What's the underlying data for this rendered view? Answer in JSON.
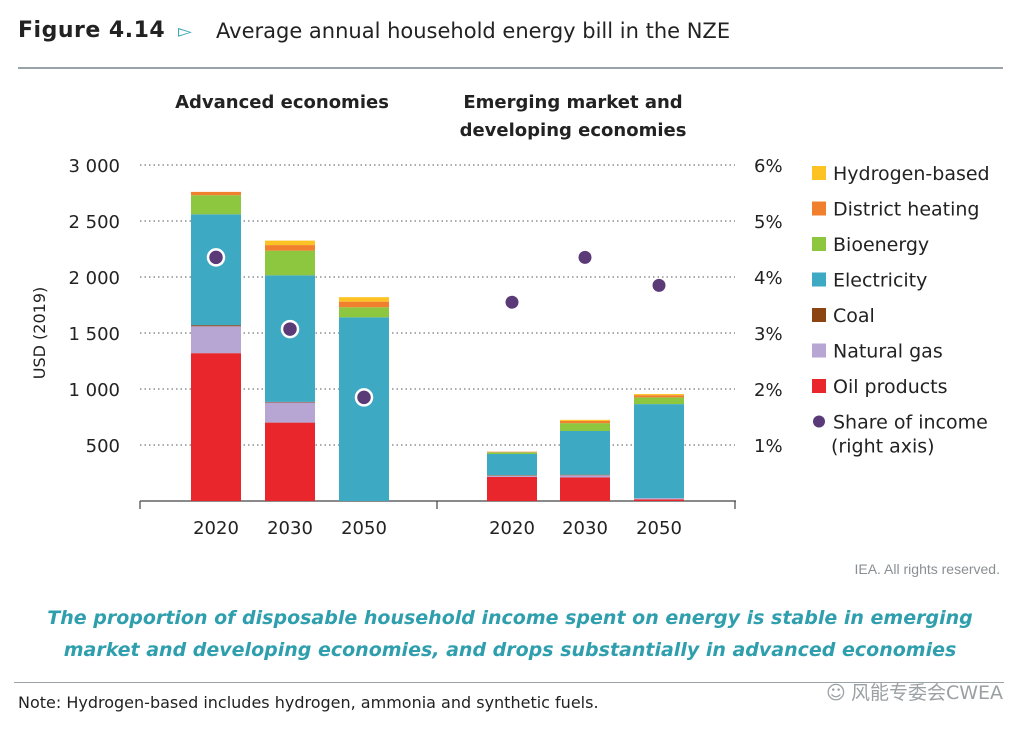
{
  "figure": {
    "number": "Figure 4.14",
    "arrow": "▻",
    "title": "Average annual household energy bill in the NZE"
  },
  "chart_data": {
    "type": "bar",
    "stacked": true,
    "title": "Average annual household energy bill in the NZE",
    "ylabel": "USD (2019)",
    "ylim": [
      0,
      3000
    ],
    "y_ticks": [
      "500",
      "1 000",
      "1 500",
      "2 000",
      "2 500",
      "3 000"
    ],
    "y_tick_values": [
      500,
      1000,
      1500,
      2000,
      2500,
      3000
    ],
    "y2label": "Share of income (right axis)",
    "y2lim": [
      0,
      6
    ],
    "y2_ticks": [
      "1%",
      "2%",
      "3%",
      "4%",
      "5%",
      "6%"
    ],
    "y2_tick_values": [
      1,
      2,
      3,
      4,
      5,
      6
    ],
    "grid": "dotted horizontal",
    "legend_position": "right",
    "colors": {
      "Oil products": "#e8262b",
      "Natural gas": "#b7a5d3",
      "Coal": "#8b4513",
      "Electricity": "#3ea9c3",
      "Bioenergy": "#8dc63f",
      "District heating": "#f07f2e",
      "Hydrogen-based": "#fdc325",
      "Share of income": "#5b3a78"
    },
    "legend": [
      {
        "name": "Hydrogen-based",
        "kind": "box"
      },
      {
        "name": "District heating",
        "kind": "box"
      },
      {
        "name": "Bioenergy",
        "kind": "box"
      },
      {
        "name": "Electricity",
        "kind": "box"
      },
      {
        "name": "Coal",
        "kind": "box"
      },
      {
        "name": "Natural gas",
        "kind": "box"
      },
      {
        "name": "Oil products",
        "kind": "box"
      },
      {
        "name": "Share of income",
        "name2": "(right axis)",
        "kind": "dot"
      }
    ],
    "series_order": [
      "Oil products",
      "Natural gas",
      "Coal",
      "Electricity",
      "Bioenergy",
      "District heating",
      "Hydrogen-based"
    ],
    "panels": [
      {
        "title_lines": [
          "Advanced economies"
        ],
        "categories": [
          "2020",
          "2030",
          "2050"
        ],
        "series": [
          {
            "name": "Oil products",
            "values": [
              1320,
              700,
              0
            ]
          },
          {
            "name": "Natural gas",
            "values": [
              240,
              180,
              0
            ]
          },
          {
            "name": "Coal",
            "values": [
              10,
              5,
              0
            ]
          },
          {
            "name": "Electricity",
            "values": [
              990,
              1130,
              1640
            ]
          },
          {
            "name": "Bioenergy",
            "values": [
              170,
              220,
              90
            ]
          },
          {
            "name": "District heating",
            "values": [
              30,
              50,
              50
            ]
          },
          {
            "name": "Hydrogen-based",
            "values": [
              0,
              40,
              40
            ]
          }
        ],
        "share_of_income": [
          4.35,
          3.07,
          1.85
        ],
        "share_marker_style": "outlined"
      },
      {
        "title_lines": [
          "Emerging market and",
          "developing economies"
        ],
        "categories": [
          "2020",
          "2030",
          "2050"
        ],
        "series": [
          {
            "name": "Oil products",
            "values": [
              215,
              210,
              15
            ]
          },
          {
            "name": "Natural gas",
            "values": [
              10,
              20,
              10
            ]
          },
          {
            "name": "Coal",
            "values": [
              5,
              5,
              0
            ]
          },
          {
            "name": "Electricity",
            "values": [
              190,
              390,
              840
            ]
          },
          {
            "name": "Bioenergy",
            "values": [
              15,
              70,
              60
            ]
          },
          {
            "name": "District heating",
            "values": [
              5,
              20,
              20
            ]
          },
          {
            "name": "Hydrogen-based",
            "values": [
              0,
              10,
              10
            ]
          }
        ],
        "share_of_income": [
          3.55,
          4.35,
          3.85
        ],
        "share_marker_style": "solid"
      }
    ]
  },
  "credit": "IEA. All rights reserved.",
  "caption": {
    "line1": "The proportion of disposable household income spent on energy is stable in emerging",
    "line2": "market and developing economies, and drops substantially in advanced economies"
  },
  "note": "Note: Hydrogen-based includes hydrogen, ammonia and synthetic fuels.",
  "watermark": {
    "icon": "wechat-icon",
    "icon_glyph": "☺",
    "text": "风能专委会CWEA"
  }
}
